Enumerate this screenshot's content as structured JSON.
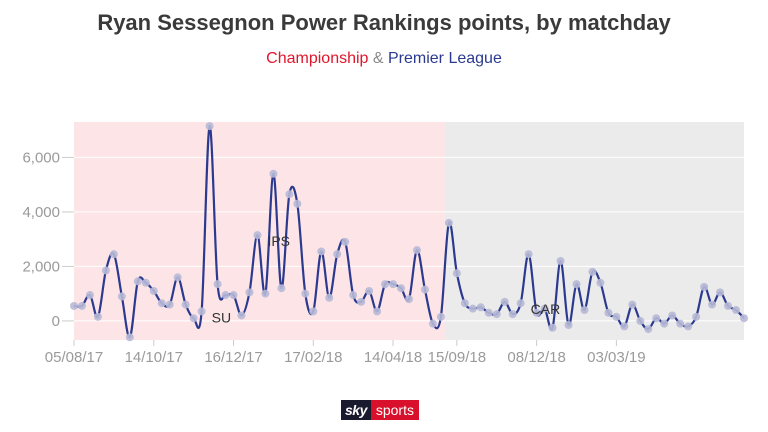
{
  "title": "Ryan Sessegnon Power Rankings points, by matchday",
  "subtitle": {
    "part1": "Championship",
    "amp": " & ",
    "part2": "Premier League"
  },
  "colors": {
    "championship_bg": "#fde4e7",
    "premier_league_bg": "#ebebeb",
    "line": "#2b3a8f",
    "marker": "#b7b9d6",
    "championship_text": "#e2162b",
    "premier_league_text": "#2b3a8f"
  },
  "logo": {
    "sky": "sky",
    "sports": "sports"
  },
  "chart_data": {
    "type": "line",
    "title": "Ryan Sessegnon Power Rankings points, by matchday",
    "xlabel": "",
    "ylabel": "",
    "ylim": [
      -700,
      7300
    ],
    "y_ticks": [
      0,
      2000,
      4000,
      6000
    ],
    "y_tick_labels": [
      "0",
      "2,000",
      "4,000",
      "6,000"
    ],
    "grid": true,
    "x_ticks": [
      {
        "index": 0,
        "label": "05/08/17"
      },
      {
        "index": 10,
        "label": "14/10/17"
      },
      {
        "index": 20,
        "label": "16/12/17"
      },
      {
        "index": 30,
        "label": "17/02/18"
      },
      {
        "index": 40,
        "label": "14/04/18"
      },
      {
        "index": 48,
        "label": "15/09/18"
      },
      {
        "index": 58,
        "label": "08/12/18"
      },
      {
        "index": 68,
        "label": "03/03/19"
      }
    ],
    "regions": [
      {
        "name": "Championship",
        "start": 0,
        "end": 46
      },
      {
        "name": "Premier League",
        "start": 46,
        "end": 81
      }
    ],
    "annotations": [
      {
        "index": 16,
        "label": "SU"
      },
      {
        "index": 23,
        "label": "IPS"
      },
      {
        "index": 56,
        "label": "CAR"
      }
    ],
    "series": [
      {
        "values": [
          550,
          550,
          950,
          150,
          1850,
          2450,
          900,
          -600,
          1450,
          1400,
          1100,
          650,
          600,
          1600,
          600,
          100,
          350,
          7150,
          1350,
          950,
          950,
          200,
          1050,
          3150,
          1000,
          5400,
          1200,
          4650,
          4300,
          1000,
          350,
          2550,
          850,
          2450,
          2900,
          950,
          700,
          1100,
          350,
          1350,
          1350,
          1200,
          800,
          2600,
          1150,
          -100,
          150,
          3600,
          1750,
          650,
          450,
          500,
          300,
          250,
          700,
          250,
          650,
          2450,
          300,
          450,
          -250,
          2200,
          -150,
          1350,
          400,
          1800,
          1400,
          300,
          150,
          -200,
          600,
          0,
          -300,
          100,
          -100,
          200,
          -100,
          -200,
          150,
          1250,
          600,
          1050,
          550,
          400,
          100
        ]
      }
    ]
  }
}
